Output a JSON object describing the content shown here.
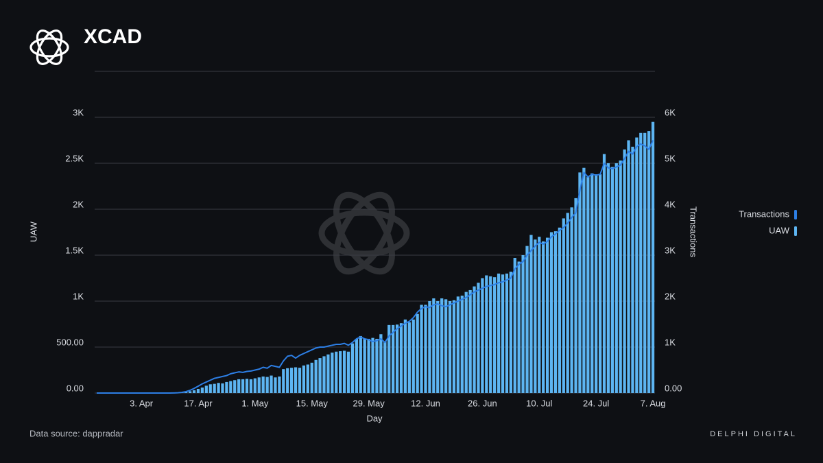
{
  "chart_data": {
    "type": "bar_line",
    "title": "XCAD",
    "source": "Data source: dappradar",
    "brand": "DELPHI DIGITAL",
    "xlabel": "Day",
    "ylabel": "UAW",
    "y2label": "Transactions",
    "categories": [
      null,
      null,
      null,
      null,
      null,
      null,
      null,
      null,
      null,
      null,
      null,
      "3. Apr",
      null,
      null,
      null,
      null,
      null,
      null,
      null,
      null,
      null,
      null,
      null,
      null,
      null,
      "17. Apr",
      null,
      null,
      null,
      null,
      null,
      null,
      null,
      null,
      null,
      null,
      null,
      null,
      null,
      "1. May",
      null,
      null,
      null,
      null,
      null,
      null,
      null,
      null,
      null,
      null,
      null,
      null,
      null,
      "15. May",
      null,
      null,
      null,
      null,
      null,
      null,
      null,
      null,
      null,
      null,
      null,
      null,
      null,
      "29. May",
      null,
      null,
      null,
      null,
      null,
      null,
      null,
      null,
      null,
      null,
      null,
      null,
      null,
      "12. Jun",
      null,
      null,
      null,
      null,
      null,
      null,
      null,
      null,
      null,
      null,
      null,
      null,
      null,
      "26. Jun",
      null,
      null,
      null,
      null,
      null,
      null,
      null,
      null,
      null,
      null,
      null,
      null,
      null,
      "10. Jul",
      null,
      null,
      null,
      null,
      null,
      null,
      null,
      null,
      null,
      null,
      null,
      null,
      null,
      "24. Jul",
      null,
      null,
      null,
      null,
      null,
      null,
      null,
      null,
      null,
      null,
      null,
      null,
      null,
      "7. Aug"
    ],
    "series": [
      {
        "name": "Transactions",
        "color": "#2d7fe6",
        "axis": "y2",
        "kind": "line",
        "values": [
          0,
          0,
          0,
          0,
          0,
          0,
          0,
          0,
          0,
          0,
          0,
          0,
          0,
          0,
          0,
          0,
          0,
          0,
          0,
          2,
          5,
          15,
          30,
          60,
          100,
          150,
          200,
          240,
          280,
          320,
          340,
          360,
          380,
          420,
          440,
          460,
          450,
          470,
          480,
          500,
          520,
          560,
          540,
          600,
          580,
          560,
          700,
          800,
          820,
          760,
          820,
          860,
          900,
          940,
          980,
          1000,
          1000,
          1020,
          1040,
          1060,
          1060,
          1080,
          1040,
          1100,
          1180,
          1220,
          1180,
          1160,
          1120,
          1140,
          1180,
          1100,
          1240,
          1320,
          1400,
          1460,
          1520,
          1560,
          1640,
          1760,
          1840,
          1880,
          1860,
          1920,
          1940,
          1900,
          1880,
          1920,
          1960,
          2000,
          2040,
          2080,
          2140,
          2200,
          2240,
          2280,
          2320,
          2340,
          2360,
          2400,
          2420,
          2460,
          2500,
          2700,
          2800,
          2860,
          3000,
          3100,
          3200,
          3280,
          3240,
          3300,
          3400,
          3460,
          3540,
          3600,
          3700,
          3820,
          3920,
          4400,
          4800,
          4700,
          4760,
          4740,
          4760,
          5000,
          4900,
          4880,
          4920,
          4960,
          5100,
          5260,
          5200,
          5360,
          5420,
          5380,
          5300,
          5500
        ]
      },
      {
        "name": "UAW",
        "color": "#5db5f2",
        "axis": "y",
        "kind": "bar",
        "values": [
          0,
          0,
          0,
          0,
          0,
          0,
          0,
          0,
          0,
          0,
          0,
          0,
          0,
          0,
          0,
          0,
          0,
          0,
          0,
          1,
          2,
          5,
          10,
          20,
          30,
          45,
          60,
          80,
          95,
          100,
          110,
          105,
          120,
          130,
          140,
          150,
          150,
          155,
          150,
          160,
          170,
          180,
          175,
          190,
          170,
          180,
          260,
          270,
          275,
          280,
          275,
          300,
          310,
          330,
          360,
          380,
          400,
          420,
          440,
          450,
          455,
          460,
          450,
          540,
          590,
          620,
          590,
          590,
          600,
          590,
          640,
          560,
          740,
          740,
          745,
          760,
          800,
          770,
          800,
          860,
          960,
          960,
          1000,
          1030,
          1000,
          1030,
          1020,
          1000,
          1010,
          1050,
          1060,
          1100,
          1120,
          1160,
          1200,
          1250,
          1280,
          1270,
          1260,
          1300,
          1290,
          1300,
          1320,
          1470,
          1430,
          1500,
          1600,
          1720,
          1670,
          1700,
          1650,
          1690,
          1750,
          1760,
          1800,
          1900,
          1960,
          2020,
          2120,
          2400,
          2450,
          2350,
          2390,
          2380,
          2380,
          2600,
          2500,
          2460,
          2500,
          2530,
          2650,
          2750,
          2680,
          2780,
          2830,
          2830,
          2850,
          2950
        ]
      }
    ],
    "ylim": [
      0,
      3500
    ],
    "yticks": [
      {
        "value": 0,
        "label": "0.00"
      },
      {
        "value": 500,
        "label": "500.00"
      },
      {
        "value": 1000,
        "label": "1K"
      },
      {
        "value": 1500,
        "label": "1.5K"
      },
      {
        "value": 2000,
        "label": "2K"
      },
      {
        "value": 2500,
        "label": "2.5K"
      },
      {
        "value": 3000,
        "label": "3K"
      }
    ],
    "y2lim": [
      0,
      7000
    ],
    "y2ticks": [
      {
        "value": 0,
        "label": "0.00"
      },
      {
        "value": 1000,
        "label": "1K"
      },
      {
        "value": 2000,
        "label": "2K"
      },
      {
        "value": 3000,
        "label": "3K"
      },
      {
        "value": 4000,
        "label": "4K"
      },
      {
        "value": 5000,
        "label": "5K"
      },
      {
        "value": 6000,
        "label": "6K"
      }
    ],
    "grid": true,
    "legend": "right"
  }
}
